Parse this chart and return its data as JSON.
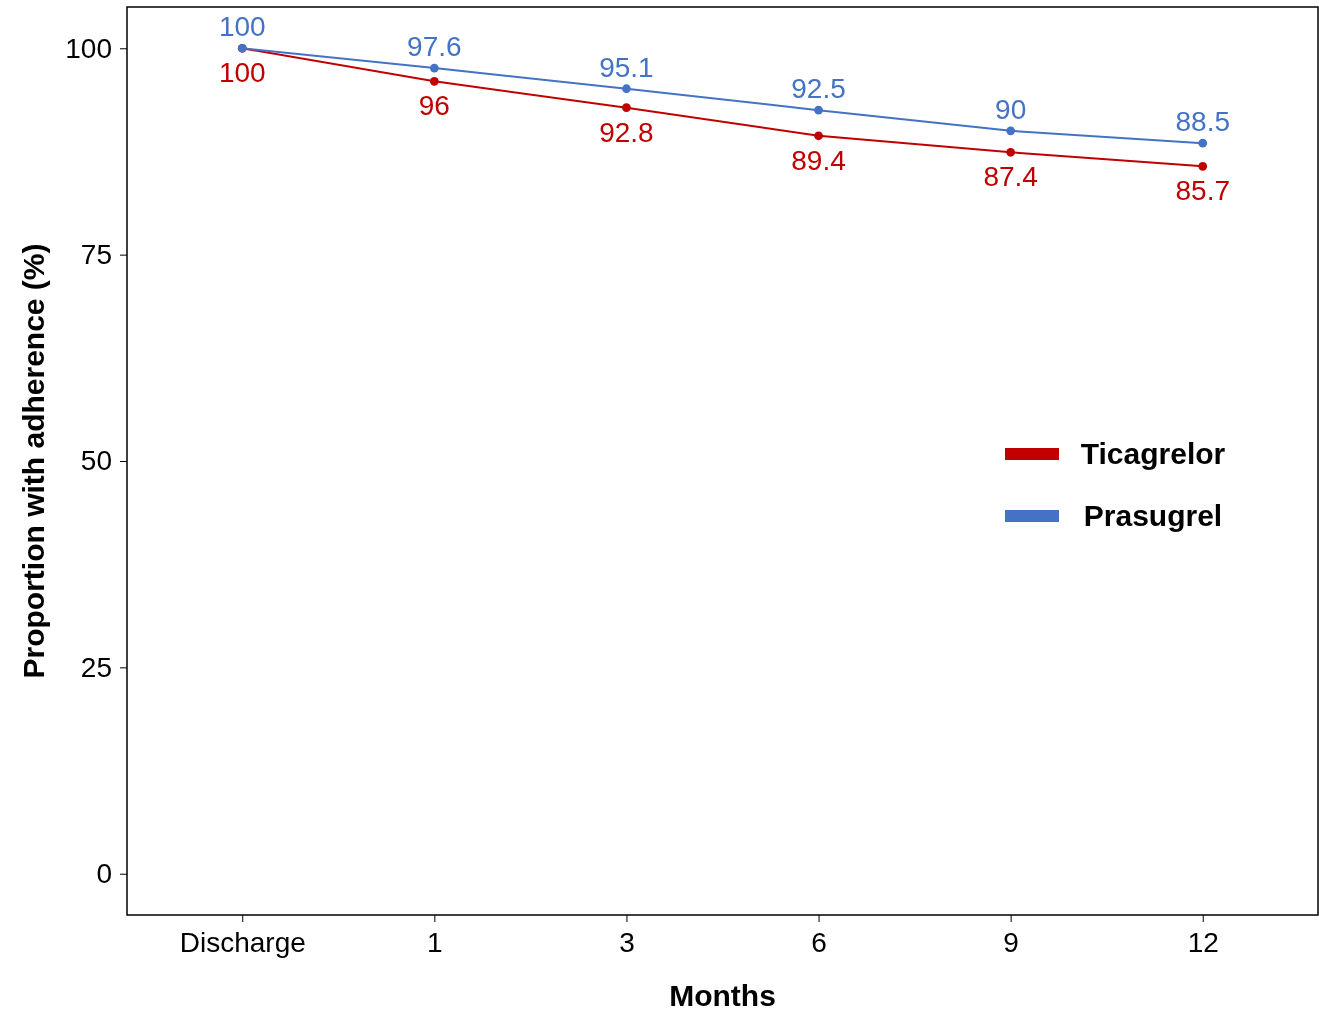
{
  "chart_data": {
    "type": "line",
    "xlabel": "Months",
    "ylabel": "Proportion with adherence (%)",
    "categories": [
      "Discharge",
      "1",
      "3",
      "6",
      "9",
      "12"
    ],
    "series": [
      {
        "name": "Ticagrelor",
        "color": "#c00000",
        "values": [
          100,
          96,
          92.8,
          89.4,
          87.4,
          85.7
        ]
      },
      {
        "name": "Prasugrel",
        "color": "#4472c4",
        "values": [
          100,
          97.6,
          95.1,
          92.5,
          90,
          88.5
        ]
      }
    ],
    "ylim": [
      -5,
      105
    ],
    "yticks": [
      0,
      25,
      50,
      75,
      100
    ],
    "grid": false,
    "legend": "right",
    "marker": "circle",
    "line_style": "solid",
    "data_labels": true
  }
}
